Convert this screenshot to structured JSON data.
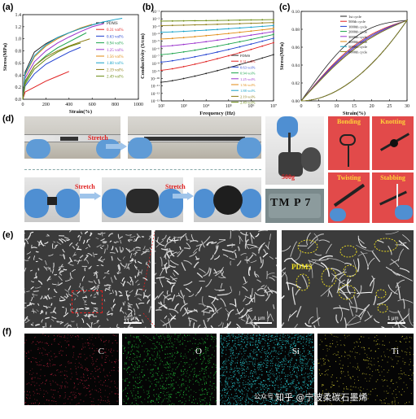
{
  "panels": {
    "a": "(a)",
    "b": "(b)",
    "c": "(c)",
    "d": "(d)",
    "e": "(e)",
    "f": "(f)"
  },
  "panel_d": {
    "stretch_label": "Stretch",
    "weight_label": "500g",
    "bonding": "Bonding",
    "knotting": "Knotting",
    "twisting": "Twisting",
    "stabbing": "Stabbing",
    "logo_text": "TM P 7"
  },
  "panel_e": {
    "scale1": "10 μm",
    "scale2": "1 μm",
    "scale3": "1 μm",
    "pdms_label": "PDMS"
  },
  "panel_f": {
    "maps": [
      "C",
      "O",
      "Si",
      "Ti"
    ]
  },
  "watermark": "知乎 @宁波柔碳石墨烯",
  "watermark_prefix": "公众号",
  "chart_data": [
    {
      "type": "line",
      "panel": "a",
      "xlabel": "Strain(%)",
      "ylabel": "Stress(MPa)",
      "xlim": [
        0,
        1000
      ],
      "ylim": [
        0,
        1.4
      ],
      "xticks": [
        0,
        200,
        400,
        600,
        800,
        1000
      ],
      "yticks": [
        0.0,
        0.2,
        0.4,
        0.6,
        0.8,
        1.0,
        1.2,
        1.4
      ],
      "legend_position": "right",
      "series": [
        {
          "name": "PDMS",
          "color": "#222222",
          "x": [
            0,
            20,
            100,
            200,
            300,
            400,
            500,
            600,
            700
          ],
          "y": [
            0,
            0.45,
            0.78,
            0.92,
            1.02,
            1.1,
            1.17,
            1.23,
            1.28
          ]
        },
        {
          "name": "0.31 vol%",
          "color": "#e02020",
          "x": [
            0,
            20,
            100,
            200,
            300,
            400
          ],
          "y": [
            0,
            0.12,
            0.2,
            0.3,
            0.38,
            0.46
          ]
        },
        {
          "name": "0.63 vol%",
          "color": "#1f3fd0",
          "x": [
            0,
            20,
            100,
            200,
            300,
            400,
            500
          ],
          "y": [
            0,
            0.22,
            0.42,
            0.58,
            0.68,
            0.78,
            0.86
          ]
        },
        {
          "name": "0.94 vol%",
          "color": "#1aa34a",
          "x": [
            0,
            20,
            100,
            200,
            300,
            400,
            500,
            550
          ],
          "y": [
            0,
            0.28,
            0.55,
            0.72,
            0.85,
            0.95,
            1.05,
            1.1
          ]
        },
        {
          "name": "1.25 vol%",
          "color": "#9a33cc",
          "x": [
            0,
            20,
            100,
            200,
            300,
            400,
            500,
            600,
            700
          ],
          "y": [
            0,
            0.35,
            0.62,
            0.8,
            0.93,
            1.03,
            1.12,
            1.2,
            1.25
          ]
        },
        {
          "name": "1.56 vol%",
          "color": "#e08a10",
          "x": [
            0,
            20,
            100,
            200,
            300,
            400,
            500,
            600
          ],
          "y": [
            0,
            0.4,
            0.7,
            0.88,
            1.0,
            1.1,
            1.18,
            1.24
          ]
        },
        {
          "name": "1.88 vol%",
          "color": "#12a0c8",
          "x": [
            0,
            20,
            100,
            200,
            300,
            400,
            500,
            600,
            700,
            800,
            860
          ],
          "y": [
            0,
            0.42,
            0.72,
            0.9,
            1.02,
            1.1,
            1.17,
            1.23,
            1.28,
            1.32,
            1.34
          ]
        },
        {
          "name": "2.19 vol%",
          "color": "#8a7a10",
          "x": [
            0,
            20,
            100,
            200,
            300,
            400,
            500,
            580
          ],
          "y": [
            0,
            0.3,
            0.55,
            0.7,
            0.8,
            0.88,
            0.95,
            1.0
          ]
        },
        {
          "name": "2.49 vol%",
          "color": "#6a8a10",
          "x": [
            0,
            20,
            100,
            200,
            300,
            400,
            500
          ],
          "y": [
            0,
            0.25,
            0.5,
            0.66,
            0.78,
            0.87,
            0.93
          ]
        }
      ]
    },
    {
      "type": "line",
      "panel": "b",
      "xlabel": "Frequency (Hz)",
      "ylabel": "Conductivity (S/cm)",
      "xscale": "log",
      "yscale": "log",
      "xlim": [
        100,
        10000000
      ],
      "ylim": [
        1e-13,
        0.1
      ],
      "xtick_labels": [
        "10²",
        "10³",
        "10⁴",
        "10⁵",
        "10⁶",
        "10⁷"
      ],
      "ytick_labels": [
        "10⁻¹",
        "10⁻²",
        "10⁻³",
        "10⁻⁴",
        "10⁻⁵",
        "10⁻⁶",
        "10⁻⁷",
        "10⁻⁸",
        "10⁻⁹",
        "10⁻¹⁰",
        "10⁻¹¹",
        "10⁻¹²",
        "10⁻¹³"
      ],
      "legend_position": "right",
      "series": [
        {
          "name": "PDMS",
          "color": "#222222",
          "logy_start": -10.5,
          "logy_end": -6.8
        },
        {
          "name": "0.31 vol%",
          "color": "#e02020",
          "logy_start": -8.9,
          "logy_end": -5.2
        },
        {
          "name": "0.63 vol%",
          "color": "#1f3fd0",
          "logy_start": -7.8,
          "logy_end": -4.6
        },
        {
          "name": "0.94 vol%",
          "color": "#1aa34a",
          "logy_start": -6.8,
          "logy_end": -4.1
        },
        {
          "name": "1.25 vol%",
          "color": "#9a33cc",
          "logy_start": -5.7,
          "logy_end": -3.7
        },
        {
          "name": "1.56 vol%",
          "color": "#e08a10",
          "logy_start": -4.7,
          "logy_end": -3.3
        },
        {
          "name": "1.88 vol%",
          "color": "#12a0c8",
          "logy_start": -3.8,
          "logy_end": -2.9
        },
        {
          "name": "2.19 vol%",
          "color": "#8a7a10",
          "logy_start": -2.9,
          "logy_end": -2.5
        },
        {
          "name": "2.49 vol%",
          "color": "#6a8a10",
          "logy_start": -2.3,
          "logy_end": -2.1
        }
      ]
    },
    {
      "type": "line",
      "panel": "c",
      "xlabel": "Strain(%)",
      "ylabel": "Stress(MPa)",
      "xlim": [
        0,
        30
      ],
      "ylim": [
        0,
        0.1
      ],
      "xticks": [
        0,
        5,
        10,
        15,
        20,
        25,
        30
      ],
      "yticks": [
        0.0,
        0.02,
        0.04,
        0.06,
        0.08,
        0.1
      ],
      "legend_position": "top-left",
      "series": [
        {
          "name": "1st cycle",
          "color": "#222222",
          "load_offset": 0.018
        },
        {
          "name": "500th cycle",
          "color": "#e02020",
          "load_offset": 0.012
        },
        {
          "name": "1000th cycle",
          "color": "#1f3fd0",
          "load_offset": 0.011
        },
        {
          "name": "2000th cycle",
          "color": "#1aa34a",
          "load_offset": 0.01
        },
        {
          "name": "3000th cycle",
          "color": "#9a33cc",
          "load_offset": 0.01
        },
        {
          "name": "4000th cycle",
          "color": "#e08a10",
          "load_offset": 0.009
        },
        {
          "name": "5000th cycle",
          "color": "#12a0c8",
          "load_offset": 0.009
        },
        {
          "name": "6000th cycle",
          "color": "#8a7a10",
          "load_offset": 0.009
        }
      ]
    }
  ]
}
